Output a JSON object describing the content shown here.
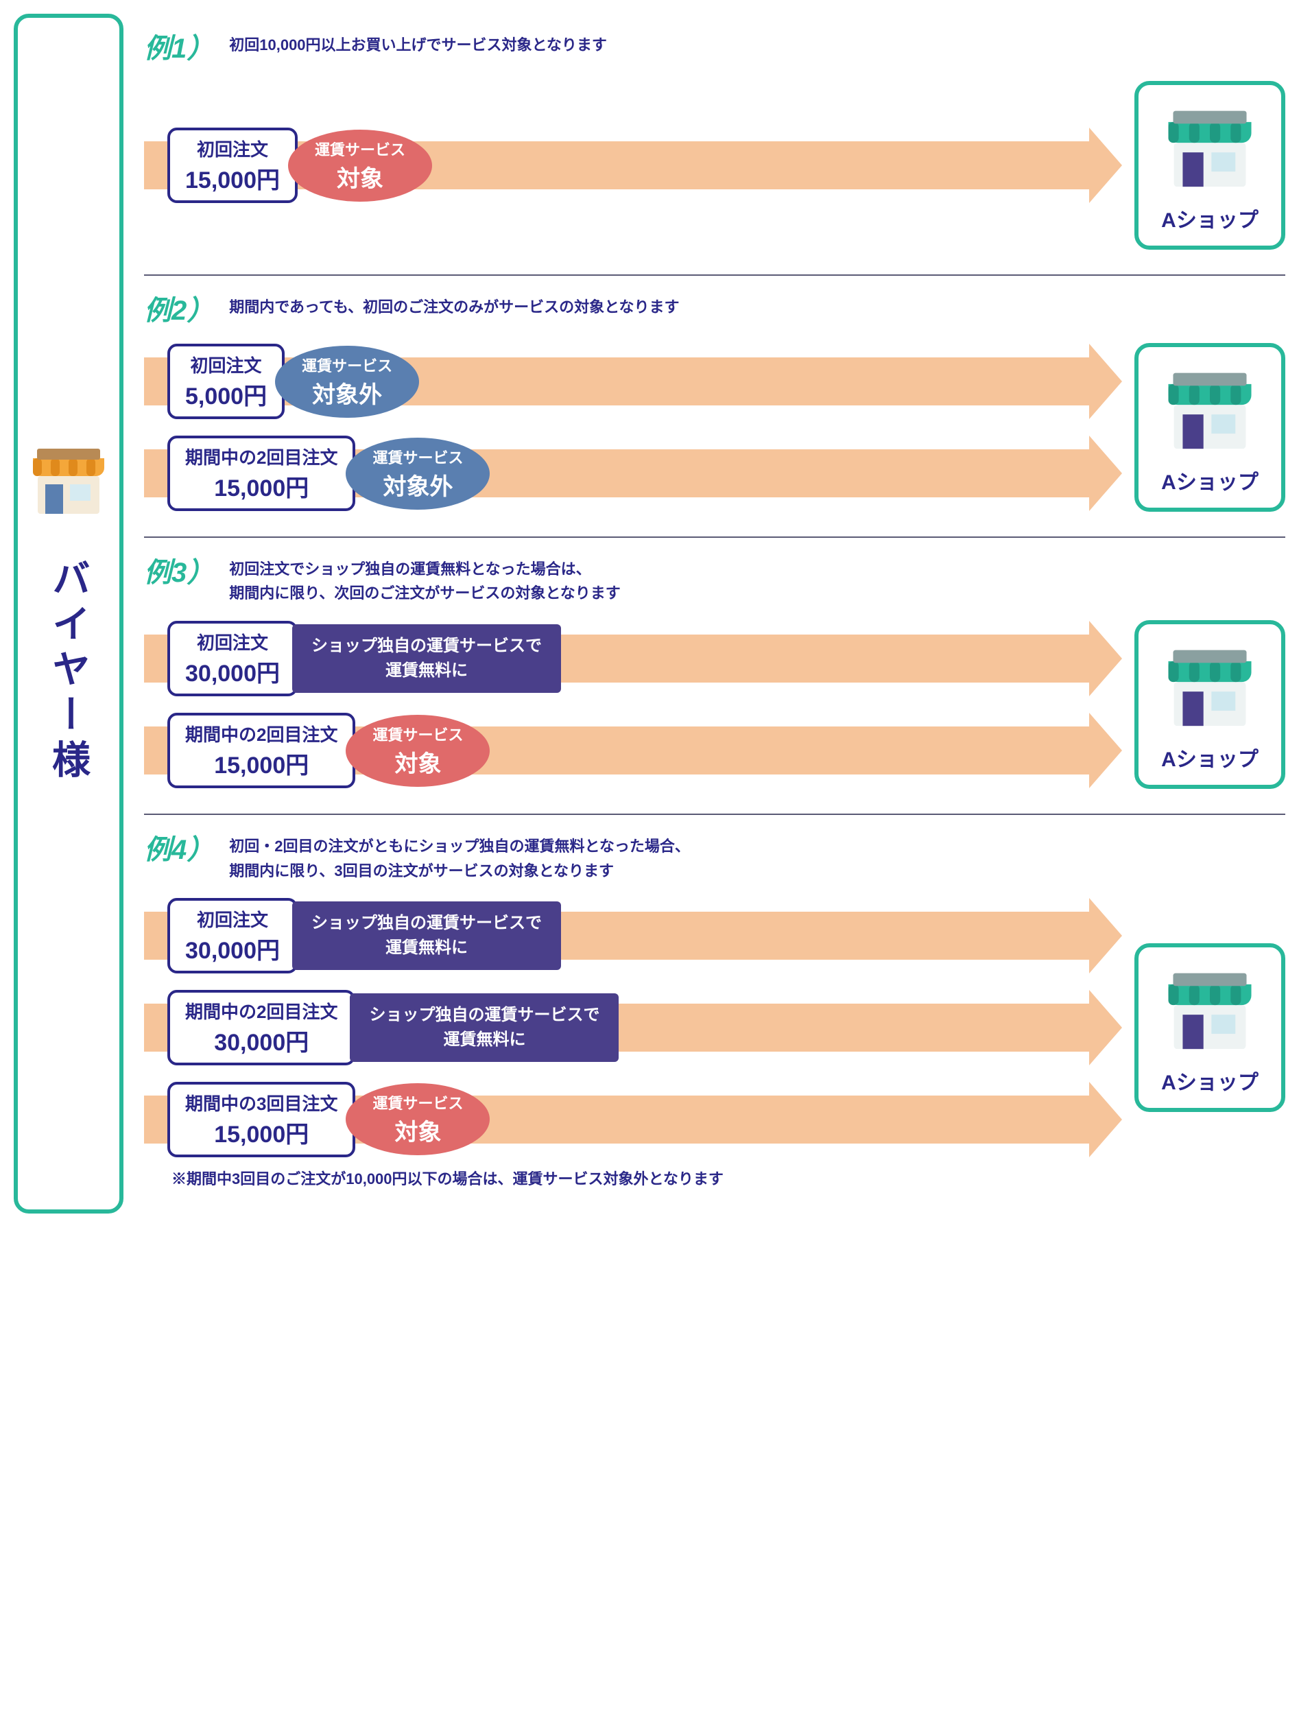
{
  "colors": {
    "green": "#28b89a",
    "navy": "#2a2788",
    "arrow": "#f6c49a",
    "badge_red": "#e06a6a",
    "badge_blue": "#5a7fb0",
    "badge_purple": "#4a3f8a",
    "divider": "#5b5b75",
    "buyer_awning": "#f4a73a",
    "buyer_awning_dark": "#e08a1c",
    "shop_awning": "#28b89a",
    "shop_awning_dark": "#1f9a82"
  },
  "buyer_label": "バイヤー様",
  "shop_name": "Aショップ",
  "service_label": "運賃サービス",
  "target_label": "対象",
  "not_target_label": "対象外",
  "purple_line1": "ショップ独自の運賃サービスで",
  "purple_line2": "運賃無料に",
  "examples": [
    {
      "num": "例1）",
      "desc": "初回10,000円以上お買い上げでサービス対象となります",
      "rows": [
        {
          "order_l1": "初回注文",
          "order_l2": "15,000円",
          "badge_type": "red"
        }
      ]
    },
    {
      "num": "例2）",
      "desc": "期間内であっても、初回のご注文のみがサービスの対象となります",
      "rows": [
        {
          "order_l1": "初回注文",
          "order_l2": "5,000円",
          "badge_type": "blue"
        },
        {
          "order_l1": "期間中の2回目注文",
          "order_l2": "15,000円",
          "badge_type": "blue"
        }
      ]
    },
    {
      "num": "例3）",
      "desc": "初回注文でショップ独自の運賃無料となった場合は、\n期間内に限り、次回のご注文がサービスの対象となります",
      "rows": [
        {
          "order_l1": "初回注文",
          "order_l2": "30,000円",
          "badge_type": "purple"
        },
        {
          "order_l1": "期間中の2回目注文",
          "order_l2": "15,000円",
          "badge_type": "red"
        }
      ]
    },
    {
      "num": "例4）",
      "desc": "初回・2回目の注文がともにショップ独自の運賃無料となった場合、\n期間内に限り、3回目の注文がサービスの対象となります",
      "rows": [
        {
          "order_l1": "初回注文",
          "order_l2": "30,000円",
          "badge_type": "purple"
        },
        {
          "order_l1": "期間中の2回目注文",
          "order_l2": "30,000円",
          "badge_type": "purple"
        },
        {
          "order_l1": "期間中の3回目注文",
          "order_l2": "15,000円",
          "badge_type": "red"
        }
      ],
      "footnote": "※期間中3回目のご注文が10,000円以下の場合は、運賃サービス対象外となります"
    }
  ]
}
